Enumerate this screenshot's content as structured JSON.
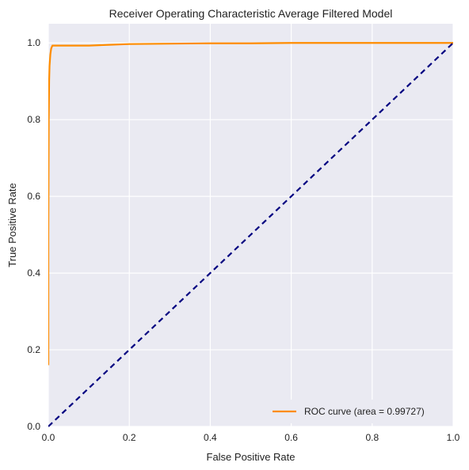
{
  "chart_data": {
    "type": "line",
    "title": "Receiver Operating Characteristic Average Filtered Model",
    "xlabel": "False Positive Rate",
    "ylabel": "True Positive Rate",
    "xlim": [
      0,
      1
    ],
    "ylim": [
      0,
      1.05
    ],
    "grid": true,
    "legend_position": "lower-right",
    "x_ticks": [
      0.0,
      0.2,
      0.4,
      0.6,
      0.8,
      1.0
    ],
    "x_tick_labels": [
      "0.0",
      "0.2",
      "0.4",
      "0.6",
      "0.8",
      "1.0"
    ],
    "y_ticks": [
      0.0,
      0.2,
      0.4,
      0.6,
      0.8,
      1.0
    ],
    "y_tick_labels": [
      "0.0",
      "0.2",
      "0.4",
      "0.6",
      "0.8",
      "1.0"
    ],
    "background_color": "#eaeaf2",
    "series": [
      {
        "name": "ROC curve (area = 0.99727)",
        "color": "#ff8c00",
        "style": "solid",
        "x": [
          0.0,
          0.0,
          0.001,
          0.002,
          0.003,
          0.005,
          0.007,
          0.01,
          0.02,
          0.05,
          0.1,
          0.15,
          0.2,
          0.3,
          0.4,
          0.5,
          0.6,
          0.7,
          0.8,
          0.9,
          1.0
        ],
        "y": [
          0.16,
          0.5,
          0.8,
          0.9,
          0.94,
          0.97,
          0.985,
          0.993,
          0.993,
          0.993,
          0.993,
          0.995,
          0.997,
          0.998,
          0.999,
          0.999,
          1.0,
          1.0,
          1.0,
          1.0,
          1.0
        ]
      },
      {
        "name": "",
        "color": "#000080",
        "style": "dashed",
        "x": [
          0.0,
          1.0
        ],
        "y": [
          0.0,
          1.0
        ]
      }
    ]
  }
}
